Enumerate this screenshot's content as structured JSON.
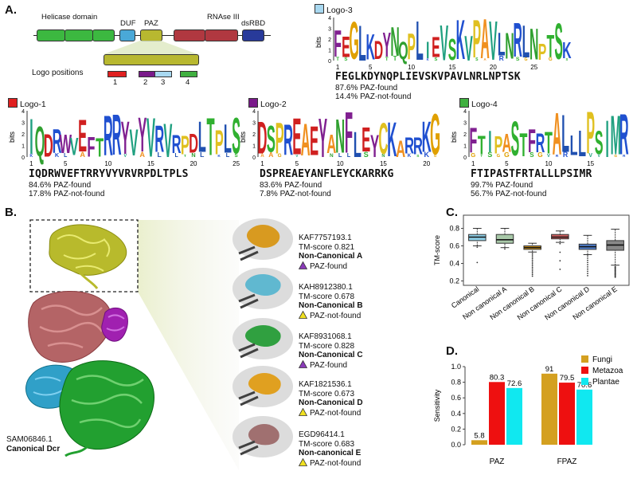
{
  "panelA": {
    "letter": "A.",
    "domains": {
      "helicase": "Helicase domain",
      "duf": "DUF",
      "paz": "PAZ",
      "rnase": "RNAse III",
      "dsrbd": "dsRBD"
    },
    "logo_positions_label": "Logo positions",
    "logo_position_numbers": [
      "1",
      "2",
      "3",
      "4"
    ],
    "colors": {
      "helicase": "#3cb840",
      "duf": "#4aa8d8",
      "paz": "#b8b830",
      "rnase": "#b03840",
      "dsrbd": "#283a9a",
      "pos1": "#e02020",
      "pos2": "#7a1a8a",
      "pos3": "#a8d8f0",
      "pos4": "#40b040"
    },
    "logos": [
      {
        "id": "logo-1",
        "title": "Logo-1",
        "color": "#e02020",
        "bits_label": "bits",
        "y_ticks": [
          "0",
          "1",
          "2",
          "3",
          "4"
        ],
        "x_ticks": [
          "1",
          "5",
          "10",
          "15",
          "20",
          "25"
        ],
        "sequence": "IQDRWVEFTRRYVYVRVRPDLTPLS",
        "found": "84.6% PAZ-found",
        "notfound": "17.8% PAZ-not-found"
      },
      {
        "id": "logo-2",
        "title": "Logo-2",
        "color": "#7a1a8a",
        "bits_label": "bits",
        "y_ticks": [
          "0",
          "1",
          "2",
          "3",
          "4"
        ],
        "x_ticks": [
          "1",
          "5",
          "10",
          "15",
          "20"
        ],
        "sequence": "DSPREAEYANFLEYCKARRKG",
        "found": "83.6% PAZ-found",
        "notfound": "7.8% PAZ-not-found"
      },
      {
        "id": "logo-3",
        "title": "Logo-3",
        "color": "#a8d8f0",
        "bits_label": "bits",
        "y_ticks": [
          "0",
          "1",
          "2",
          "3",
          "4"
        ],
        "x_ticks": [
          "1",
          "5",
          "10",
          "15",
          "20",
          "25"
        ],
        "sequence": "FEGLKDYNQPLIEVSKVPAVLNRLNPTSK",
        "found": "87.6% PAZ-found",
        "notfound": "14.4% PAZ-not-found"
      },
      {
        "id": "logo-4",
        "title": "Logo-4",
        "color": "#40b040",
        "bits_label": "bits",
        "y_ticks": [
          "0",
          "1",
          "2",
          "3",
          "4"
        ],
        "x_ticks": [
          "1",
          "5",
          "10",
          "15"
        ],
        "sequence": "FTIPASTFRTALLLPSIMR",
        "found": "99.7% PAZ-found",
        "notfound": "56.7% PAZ-not-found"
      }
    ]
  },
  "panelB": {
    "letter": "B.",
    "main_id": "SAM06846.1",
    "main_label": "Canonical Dcr",
    "entries": [
      {
        "id": "KAF7757193.1",
        "tm": "TM-score 0.821",
        "class": "Non-Canonical A",
        "status": "PAZ-found",
        "marker": "#8a3ab8"
      },
      {
        "id": "KAH8912380.1",
        "tm": "TM-score 0.678",
        "class": "Non-Canonical B",
        "status": "PAZ-not-found",
        "marker": "#f0e020"
      },
      {
        "id": "KAF8931068.1",
        "tm": "TM-score 0.828",
        "class": "Non-Canonical C",
        "status": "PAZ-found",
        "marker": "#8a3ab8"
      },
      {
        "id": "KAF1821536.1",
        "tm": "TM-score 0.673",
        "class": "Non-Canonical D",
        "status": "PAZ-not-found",
        "marker": "#f0e020"
      },
      {
        "id": "EGD96414.1",
        "tm": "TM-score 0.683",
        "class": "Non-canonical E",
        "status": "PAZ-not-found",
        "marker": "#f0e020"
      }
    ]
  },
  "chart_data": [
    {
      "type": "boxplot",
      "panel": "C.",
      "ylabel": "TM-score",
      "ylim": [
        0.15,
        0.95
      ],
      "yticks": [
        0.2,
        0.4,
        0.6,
        0.8
      ],
      "categories": [
        "Canonical",
        "Non canonical A",
        "Non canonical B",
        "Non canonical C",
        "Non canonical D",
        "Non canonical E"
      ],
      "colors": [
        "#8fd0e8",
        "#a8c8a8",
        "#e0a020",
        "#d06060",
        "#5080d0",
        "#888888"
      ],
      "boxes": [
        {
          "min": 0.6,
          "q1": 0.66,
          "median": 0.7,
          "q3": 0.73,
          "max": 0.8
        },
        {
          "min": 0.58,
          "q1": 0.63,
          "median": 0.67,
          "q3": 0.73,
          "max": 0.8
        },
        {
          "min": 0.53,
          "q1": 0.56,
          "median": 0.58,
          "q3": 0.6,
          "max": 0.63
        },
        {
          "min": 0.64,
          "q1": 0.68,
          "median": 0.7,
          "q3": 0.73,
          "max": 0.77
        },
        {
          "min": 0.5,
          "q1": 0.56,
          "median": 0.59,
          "q3": 0.62,
          "max": 0.72
        },
        {
          "min": 0.38,
          "q1": 0.55,
          "median": 0.61,
          "q3": 0.66,
          "max": 0.79
        }
      ]
    },
    {
      "type": "bar",
      "panel": "D.",
      "ylabel": "Sensitivity",
      "ylim": [
        0,
        1.0
      ],
      "yticks": [
        0.0,
        0.2,
        0.4,
        0.6,
        0.8,
        1.0
      ],
      "categories": [
        "PAZ",
        "FPAZ"
      ],
      "series": [
        {
          "name": "Fungi",
          "color": "#d4a020",
          "values": [
            0.058,
            0.91
          ],
          "labels": [
            "5.8",
            "91"
          ]
        },
        {
          "name": "Metazoa",
          "color": "#ee1010",
          "values": [
            0.803,
            0.795
          ],
          "labels": [
            "80.3",
            "79.5"
          ]
        },
        {
          "name": "Plantae",
          "color": "#10e8f0",
          "values": [
            0.726,
            0.706
          ],
          "labels": [
            "72.6",
            "70.6"
          ]
        }
      ]
    }
  ]
}
